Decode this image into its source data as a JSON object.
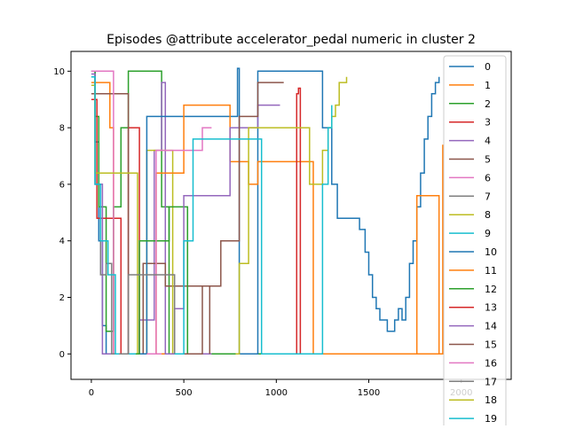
{
  "chart_data": {
    "type": "line",
    "title": "Episodes @attribute accelerator_pedal numeric in cluster 2",
    "xlabel": "",
    "ylabel": "",
    "xlim": [
      -110,
      2270
    ],
    "ylim": [
      -0.9,
      10.7
    ],
    "xticks": [
      0,
      500,
      1000,
      1500,
      2000
    ],
    "yticks": [
      0,
      2,
      4,
      6,
      8,
      10
    ],
    "grid": false,
    "legend_position": "right (overflowing bottom)",
    "series": [
      {
        "name": "0",
        "color": "#1f77b4",
        "x": [
          0,
          20,
          40,
          60,
          80,
          100,
          150,
          250,
          350,
          450,
          550,
          700,
          800,
          900,
          1100,
          1200,
          1230,
          1250,
          1270,
          1300,
          1320,
          1350,
          1400,
          1450,
          1480,
          1500,
          1550,
          1600,
          1650,
          1700,
          1750,
          1800,
          1840,
          1860,
          1880
        ],
        "y": [
          10.0,
          7.5,
          4.0,
          1.0,
          0.0,
          0.0,
          0.0,
          0.0,
          0.0,
          0.0,
          0.0,
          0.0,
          0.0,
          0.0,
          0.0,
          0.0,
          0.0,
          0.0,
          0.0,
          0.0,
          0.0,
          0.0,
          0.0,
          0.0,
          0.0,
          0.0,
          0.0,
          0.0,
          0.0,
          0.0,
          0.0,
          0.0,
          0.0,
          0.0,
          0.0
        ]
      },
      {
        "name": "1",
        "color": "#ff7f0e",
        "x": [
          0,
          10,
          30,
          60,
          90,
          100,
          120,
          160,
          200,
          250,
          300,
          350,
          400,
          450,
          550,
          650,
          750,
          850,
          950,
          1100,
          1300,
          1500,
          1700,
          1750,
          1800,
          1850,
          1870,
          1890,
          1900
        ],
        "y": [
          9.6,
          9.6,
          9.6,
          9.6,
          9.6,
          8.0,
          0.0,
          0.0,
          0.0,
          0.0,
          0.0,
          0.0,
          0.0,
          0.0,
          0.0,
          0.0,
          0.0,
          0.0,
          0.0,
          0.0,
          0.0,
          0.0,
          0.0,
          0.0,
          0.0,
          0.0,
          0.0,
          0.0,
          0.0
        ]
      },
      {
        "name": "2",
        "color": "#2ca02c",
        "x": [
          0,
          20,
          40,
          80,
          120,
          160,
          200,
          260,
          320,
          370,
          380,
          420,
          500,
          600,
          700,
          800,
          900,
          1000,
          1100,
          1200,
          1300,
          1400,
          1430
        ],
        "y": [
          10.0,
          8.4,
          5.2,
          0.8,
          5.2,
          8.0,
          10.0,
          10.0,
          10.0,
          10.0,
          5.2,
          0.0,
          0.0,
          0.0,
          0.0,
          0.0,
          0.0,
          0.0,
          0.0,
          0.0,
          0.0,
          0.0,
          0.0
        ]
      },
      {
        "name": "3",
        "color": "#d62728",
        "x": [
          0,
          30,
          60,
          90,
          120,
          160,
          200,
          240,
          260
        ],
        "y": [
          9.0,
          4.8,
          4.8,
          4.8,
          4.8,
          0.0,
          8.0,
          8.0,
          0.0
        ]
      },
      {
        "name": "4",
        "color": "#9467bd",
        "x": [
          0,
          20,
          60,
          120,
          180,
          260,
          340,
          380,
          400,
          450,
          500,
          560,
          620,
          640,
          650
        ],
        "y": [
          9.9,
          6.0,
          0.0,
          0.0,
          0.0,
          1.2,
          7.2,
          9.6,
          0.0,
          0.0,
          0.0,
          0.0,
          0.0,
          0.0,
          0.0
        ]
      },
      {
        "name": "5",
        "color": "#8c564b",
        "x": [
          0,
          20,
          60,
          120,
          160,
          200,
          280,
          300,
          350,
          400,
          450,
          500,
          560,
          600,
          620,
          640
        ],
        "y": [
          9.2,
          9.2,
          9.2,
          9.2,
          9.2,
          0.0,
          3.2,
          3.2,
          3.2,
          2.4,
          2.4,
          2.4,
          2.4,
          2.4,
          2.4,
          0.0
        ]
      },
      {
        "name": "6",
        "color": "#e377c2",
        "x": [
          0,
          30,
          60,
          90,
          120,
          160,
          200,
          260,
          320,
          380
        ],
        "y": [
          10.0,
          10.0,
          10.0,
          10.0,
          0.0,
          0.0,
          0.0,
          0.0,
          0.0,
          0.0
        ]
      },
      {
        "name": "7",
        "color": "#7f7f7f",
        "x": [
          0,
          20,
          50,
          80,
          110,
          140,
          180,
          230
        ],
        "y": [
          9.8,
          6.0,
          2.8,
          3.2,
          0.0,
          0.0,
          0.0,
          0.0
        ]
      },
      {
        "name": "8",
        "color": "#bcbd22",
        "x": [
          0,
          20,
          60,
          100,
          150,
          200,
          250,
          300,
          350,
          420,
          440,
          480,
          500
        ],
        "y": [
          9.5,
          6.4,
          6.4,
          6.4,
          6.4,
          6.4,
          0.0,
          7.2,
          7.2,
          7.2,
          0.0,
          0.0,
          0.0
        ]
      },
      {
        "name": "9",
        "color": "#17becf",
        "x": [
          0,
          20,
          50,
          90,
          130,
          160,
          200,
          240,
          280,
          340
        ],
        "y": [
          9.8,
          6.0,
          4.0,
          2.8,
          0.0,
          0.0,
          0.0,
          0.0,
          0.0,
          0.0
        ]
      },
      {
        "name": "10",
        "color": "#1f77b4",
        "x": [
          260,
          300,
          360,
          400,
          450,
          500,
          550,
          600,
          650,
          700,
          750,
          790,
          800,
          820,
          850,
          900,
          950,
          1000,
          1100,
          1200,
          1240,
          1250,
          1300,
          1330,
          1350,
          1400,
          1450,
          1480,
          1500,
          1520,
          1540,
          1560,
          1580,
          1600,
          1620,
          1640,
          1660,
          1680,
          1700,
          1720,
          1740,
          1760,
          1780,
          1800,
          1820,
          1840,
          1860,
          1880
        ],
        "y": [
          0.0,
          8.4,
          8.4,
          8.4,
          8.4,
          8.4,
          8.4,
          8.4,
          8.4,
          8.4,
          8.4,
          10.1,
          0.0,
          0.0,
          0.0,
          10.0,
          10.0,
          10.0,
          10.0,
          10.0,
          10.0,
          8.0,
          6.0,
          4.8,
          4.8,
          4.8,
          4.4,
          3.6,
          2.8,
          2.0,
          1.6,
          1.2,
          1.2,
          0.8,
          0.8,
          1.2,
          1.6,
          1.2,
          2.0,
          3.2,
          4.0,
          5.2,
          6.4,
          7.6,
          8.4,
          9.2,
          9.6,
          9.8
        ]
      },
      {
        "name": "11",
        "color": "#ff7f0e",
        "x": [
          300,
          350,
          400,
          450,
          500,
          550,
          600,
          700,
          750,
          800,
          850,
          900,
          950,
          1000,
          1100,
          1200,
          1300,
          1400,
          1500,
          1600,
          1700,
          1740,
          1760,
          1800,
          1850,
          1880,
          1890,
          1900
        ],
        "y": [
          0.0,
          6.4,
          6.4,
          6.4,
          8.8,
          8.8,
          8.8,
          8.8,
          6.8,
          6.8,
          6.0,
          6.8,
          6.8,
          6.8,
          6.8,
          0.0,
          0.0,
          0.0,
          0.0,
          0.0,
          0.0,
          0.0,
          5.6,
          5.6,
          5.6,
          0.0,
          0.0,
          7.4
        ]
      },
      {
        "name": "12",
        "color": "#2ca02c",
        "x": [
          240,
          260,
          300,
          340,
          380,
          420,
          460,
          500,
          520
        ],
        "y": [
          0.0,
          4.0,
          4.0,
          4.0,
          4.0,
          5.2,
          5.2,
          5.2,
          0.0
        ]
      },
      {
        "name": "13",
        "color": "#d62728",
        "x": [
          1100,
          1110,
          1120,
          1130
        ],
        "y": [
          0.0,
          9.2,
          9.4,
          0.0
        ]
      },
      {
        "name": "14",
        "color": "#9467bd",
        "x": [
          400,
          450,
          500,
          550,
          600,
          650,
          700,
          750,
          800,
          850,
          900,
          950,
          1000,
          1020
        ],
        "y": [
          0.0,
          1.6,
          5.6,
          5.6,
          5.6,
          5.6,
          5.6,
          8.0,
          8.0,
          8.0,
          8.8,
          8.8,
          8.8,
          8.8
        ]
      },
      {
        "name": "15",
        "color": "#8c564b",
        "x": [
          500,
          600,
          700,
          800,
          860,
          900,
          950,
          1000,
          1040
        ],
        "y": [
          0.0,
          2.4,
          4.0,
          8.4,
          8.4,
          9.6,
          9.6,
          9.6,
          9.6
        ]
      },
      {
        "name": "16",
        "color": "#e377c2",
        "x": [
          300,
          350,
          400,
          450,
          500,
          550,
          600,
          650
        ],
        "y": [
          0.0,
          7.2,
          7.2,
          7.2,
          7.2,
          7.2,
          8.0,
          8.0
        ]
      },
      {
        "name": "17",
        "color": "#7f7f7f",
        "x": [
          150,
          200,
          250,
          300,
          350,
          400,
          450
        ],
        "y": [
          0.0,
          2.8,
          2.8,
          2.8,
          2.8,
          2.8,
          0.0
        ]
      },
      {
        "name": "18",
        "color": "#bcbd22",
        "x": [
          780,
          800,
          850,
          900,
          950,
          1000,
          1050,
          1100,
          1150,
          1180,
          1200,
          1250,
          1280,
          1300,
          1320,
          1340,
          1360,
          1380
        ],
        "y": [
          0.0,
          3.2,
          8.0,
          8.0,
          8.0,
          8.0,
          8.0,
          8.0,
          8.0,
          6.0,
          6.0,
          7.2,
          8.0,
          8.4,
          8.8,
          9.6,
          9.6,
          9.8
        ]
      },
      {
        "name": "19",
        "color": "#17becf",
        "x": [
          450,
          500,
          550,
          600,
          650,
          700,
          750,
          800,
          850,
          900,
          920,
          1000,
          1100,
          1200,
          1220,
          1250,
          1280,
          1300
        ],
        "y": [
          0.0,
          4.0,
          7.6,
          7.6,
          7.6,
          7.6,
          7.6,
          7.6,
          7.6,
          7.6,
          0.0,
          0.0,
          0.0,
          0.0,
          0.0,
          6.0,
          8.0,
          8.8
        ]
      }
    ]
  }
}
